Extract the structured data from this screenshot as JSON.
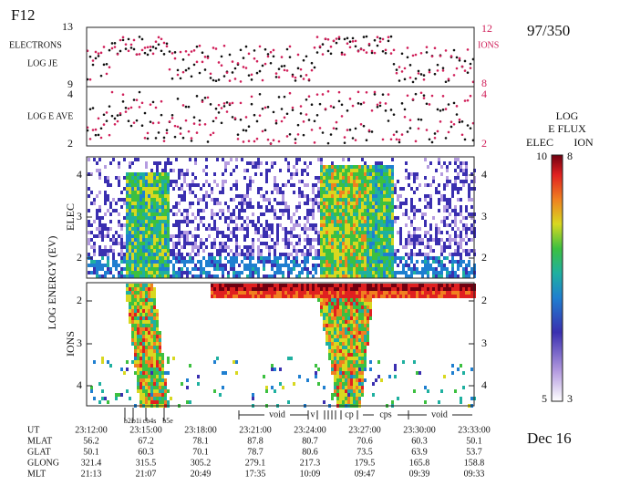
{
  "satellite": "F12",
  "date_code": "97/350",
  "date": "Dec 16",
  "panel1": {
    "left_labels": [
      "ELECTRONS",
      "LOG JE"
    ],
    "right_label": "IONS",
    "left_ticks": [
      13,
      9
    ],
    "right_ticks": [
      12,
      8
    ]
  },
  "panel2": {
    "left_label": "LOG E AVE",
    "left_ticks": [
      4,
      2
    ],
    "right_ticks": [
      4,
      2
    ]
  },
  "y_label": "LOG ENERGY (EV)",
  "elec_panel": {
    "label": "ELEC",
    "ticks": [
      4,
      3,
      2
    ]
  },
  "ion_panel": {
    "label": "IONS",
    "ticks": [
      2,
      3,
      4
    ]
  },
  "colorbar": {
    "title": [
      "LOG",
      "E FLUX"
    ],
    "elec_label": "ELEC",
    "ion_label": "ION",
    "elec_max": 10,
    "ion_max": 8,
    "elec_min": 5,
    "ion_min": 3
  },
  "boundary_labels": [
    "b2i",
    "b1i",
    "cb4s",
    "b5e"
  ],
  "regions": [
    "void",
    "v",
    "cp",
    "cps",
    "void"
  ],
  "table": {
    "row_labels": [
      "UT",
      "MLAT",
      "GLAT",
      "GLONG",
      "MLT"
    ],
    "rows": [
      [
        "23:12:00",
        "23:15:00",
        "23:18:00",
        "23:21:00",
        "23:24:00",
        "23:27:00",
        "23:30:00",
        "23:33:00"
      ],
      [
        56.2,
        67.2,
        78.1,
        87.8,
        80.7,
        70.6,
        60.3,
        50.1
      ],
      [
        50.1,
        60.3,
        70.1,
        78.7,
        80.6,
        73.5,
        63.9,
        53.7
      ],
      [
        321.4,
        315.5,
        305.2,
        279.1,
        217.3,
        179.5,
        165.8,
        158.8
      ],
      [
        "21:13",
        "21:07",
        "20:49",
        "17:35",
        "10:09",
        "09:47",
        "09:39",
        "09:33"
      ]
    ]
  }
}
